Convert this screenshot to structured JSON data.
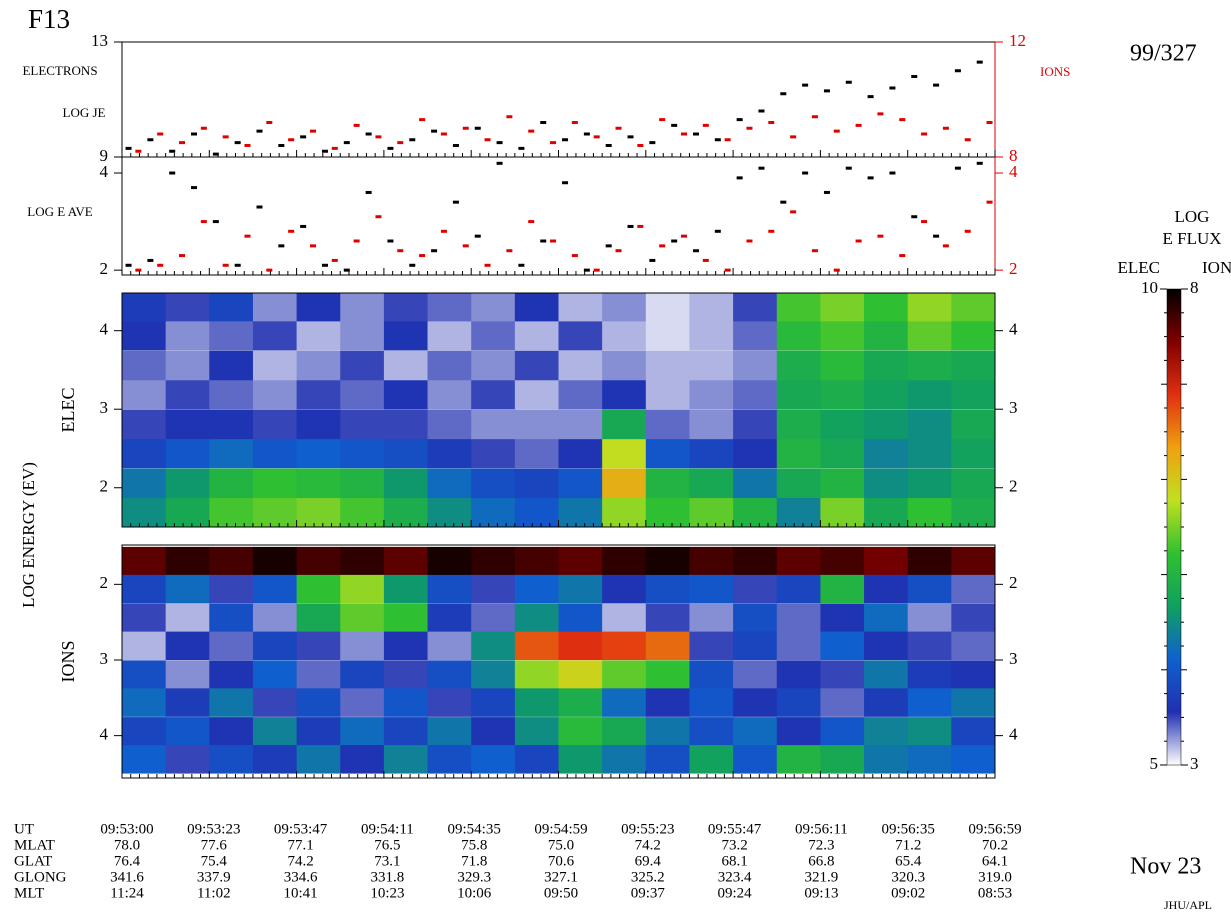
{
  "header": {
    "satellite": "F13",
    "day": "99/327",
    "date": "Nov 23",
    "credit": "JHU/APL",
    "y_axis_label": "LOG ENERGY (EV)"
  },
  "chart_data": [
    {
      "type": "scatter",
      "label_left_1": "ELECTRONS",
      "label_left_2": "LOG JE",
      "label_right": "IONS",
      "ylim": [
        9,
        13
      ],
      "yticks": [
        9,
        13
      ],
      "y2lim": [
        8,
        12
      ],
      "y2ticks": [
        8,
        12
      ],
      "series": [
        {
          "name": "ELECTRONS",
          "color": "#000000",
          "values": [
            9.3,
            9.6,
            9.2,
            9.8,
            9.1,
            9.5,
            9.9,
            9.4,
            9.7,
            9.2,
            9.5,
            9.8,
            9.3,
            9.6,
            9.9,
            9.4,
            10.0,
            9.5,
            9.3,
            10.2,
            9.6,
            9.8,
            9.4,
            9.7,
            9.5,
            10.1,
            9.8,
            9.6,
            10.3,
            10.6,
            11.2,
            11.5,
            11.3,
            11.6,
            11.1,
            11.4,
            11.8,
            11.5,
            12.0,
            12.3
          ]
        },
        {
          "name": "IONS",
          "color": "#e00000",
          "axis": "y2",
          "values": [
            8.2,
            8.8,
            8.5,
            9.0,
            8.7,
            8.4,
            9.2,
            8.6,
            8.9,
            8.3,
            9.1,
            8.7,
            8.5,
            9.3,
            8.8,
            9.0,
            8.6,
            9.4,
            8.9,
            8.5,
            9.2,
            8.7,
            9.0,
            8.4,
            9.3,
            8.8,
            9.1,
            8.6,
            9.0,
            9.2,
            8.7,
            9.4,
            8.9,
            9.1,
            9.5,
            9.3,
            8.8,
            9.0,
            8.6,
            9.2
          ]
        }
      ]
    },
    {
      "type": "scatter",
      "label_left_1": "LOG E AVE",
      "ylim": [
        1.9,
        4.33
      ],
      "yticks": [
        2,
        4
      ],
      "y2lim": [
        1.9,
        4.33
      ],
      "y2ticks": [
        2,
        4
      ],
      "series": [
        {
          "name": "ELECTRONS",
          "color": "#000000",
          "values": [
            2.1,
            2.2,
            4.0,
            3.7,
            3.0,
            2.1,
            3.3,
            2.5,
            2.9,
            2.1,
            2.0,
            3.6,
            2.6,
            2.1,
            2.4,
            3.4,
            2.7,
            4.2,
            2.1,
            2.6,
            3.8,
            2.0,
            2.5,
            2.9,
            2.2,
            2.6,
            2.4,
            2.8,
            3.9,
            4.1,
            3.4,
            4.0,
            3.6,
            4.1,
            3.9,
            4.0,
            3.1,
            2.7,
            4.1,
            4.2
          ]
        },
        {
          "name": "IONS",
          "color": "#e00000",
          "axis": "y2",
          "values": [
            2.0,
            2.1,
            2.3,
            3.0,
            2.1,
            2.7,
            2.0,
            2.8,
            2.5,
            2.2,
            2.6,
            3.1,
            2.4,
            2.3,
            2.8,
            2.5,
            2.1,
            2.4,
            3.0,
            2.6,
            2.3,
            2.0,
            2.4,
            2.9,
            2.5,
            2.7,
            2.2,
            2.0,
            2.6,
            2.8,
            3.2,
            2.4,
            2.0,
            2.6,
            2.7,
            2.3,
            3.0,
            2.5,
            2.8,
            3.4
          ]
        }
      ]
    },
    {
      "type": "heatmap",
      "ylabel": "ELEC",
      "species": "elec",
      "ylim": [
        1.5,
        4.48
      ],
      "yticks": [
        2,
        3,
        4
      ],
      "y": [
        1.69,
        2.06,
        2.44,
        2.81,
        3.19,
        3.56,
        3.94,
        4.31
      ],
      "values": [
        [
          6.5,
          6.8,
          7.3,
          7.4,
          7.5,
          7.3,
          6.9,
          6.5,
          6.2,
          6.0,
          6.3,
          7.6,
          7.2,
          7.4,
          7.0,
          6.4,
          7.5,
          6.8,
          7.2,
          6.9
        ],
        [
          6.3,
          6.6,
          7.0,
          7.2,
          7.1,
          7.0,
          6.6,
          6.2,
          5.9,
          5.8,
          6.0,
          8.2,
          7.0,
          6.8,
          6.3,
          6.8,
          7.0,
          6.5,
          6.6,
          6.8
        ],
        [
          5.8,
          6.0,
          6.2,
          6.0,
          6.1,
          6.0,
          5.9,
          5.7,
          5.5,
          5.4,
          5.6,
          7.8,
          6.0,
          5.8,
          5.6,
          7.0,
          6.8,
          6.4,
          6.5,
          6.7
        ],
        [
          5.5,
          5.6,
          5.6,
          5.5,
          5.6,
          5.5,
          5.5,
          5.4,
          5.3,
          5.3,
          5.3,
          6.8,
          5.4,
          5.3,
          5.5,
          6.9,
          6.7,
          6.6,
          6.5,
          6.8
        ],
        [
          5.3,
          5.5,
          5.4,
          5.3,
          5.5,
          5.4,
          5.6,
          5.3,
          5.5,
          5.2,
          5.4,
          5.6,
          5.2,
          5.3,
          5.4,
          6.8,
          6.9,
          6.7,
          6.6,
          6.7
        ],
        [
          5.4,
          5.3,
          5.6,
          5.2,
          5.3,
          5.5,
          5.2,
          5.4,
          5.3,
          5.5,
          5.2,
          5.3,
          5.2,
          5.2,
          5.3,
          6.9,
          7.1,
          6.8,
          6.9,
          6.8
        ],
        [
          5.6,
          5.3,
          5.4,
          5.5,
          5.2,
          5.3,
          5.6,
          5.2,
          5.4,
          5.2,
          5.5,
          5.2,
          5.1,
          5.2,
          5.4,
          7.1,
          7.3,
          7.0,
          7.4,
          7.2
        ],
        [
          5.7,
          5.5,
          5.8,
          5.3,
          5.6,
          5.3,
          5.5,
          5.4,
          5.3,
          5.6,
          5.2,
          5.3,
          5.1,
          5.2,
          5.5,
          7.3,
          7.5,
          7.2,
          7.6,
          7.4
        ]
      ]
    },
    {
      "type": "heatmap",
      "ylabel": "IONS",
      "species": "ion",
      "inverted": true,
      "ylim": [
        1.48,
        4.56
      ],
      "yticks": [
        2,
        3,
        4
      ],
      "y": [
        1.69,
        2.06,
        2.44,
        2.81,
        3.19,
        3.56,
        3.94,
        4.31
      ],
      "values": [
        [
          7.6,
          7.8,
          7.7,
          7.9,
          7.7,
          7.8,
          7.6,
          7.9,
          7.8,
          7.7,
          7.6,
          7.8,
          7.9,
          7.7,
          7.8,
          7.6,
          7.7,
          7.5,
          7.8,
          7.6
        ],
        [
          3.8,
          4.2,
          3.5,
          4.0,
          5.2,
          5.6,
          4.6,
          3.9,
          3.5,
          4.1,
          4.3,
          3.6,
          3.9,
          4.0,
          3.5,
          3.8,
          5.0,
          3.6,
          3.9,
          3.4
        ],
        [
          3.5,
          3.2,
          3.9,
          3.3,
          4.8,
          5.4,
          5.2,
          3.7,
          3.4,
          4.5,
          4.0,
          3.2,
          3.5,
          3.3,
          3.9,
          3.4,
          3.6,
          4.2,
          3.3,
          3.5
        ],
        [
          3.2,
          3.6,
          3.4,
          3.8,
          3.5,
          3.3,
          3.6,
          3.3,
          4.5,
          6.7,
          6.9,
          6.8,
          6.6,
          3.5,
          3.8,
          3.4,
          4.1,
          3.6,
          3.5,
          3.4
        ],
        [
          3.9,
          3.3,
          3.6,
          4.1,
          3.4,
          3.8,
          3.5,
          3.9,
          4.4,
          5.6,
          5.9,
          5.4,
          5.2,
          3.9,
          3.4,
          3.6,
          3.5,
          4.3,
          3.7,
          3.6
        ],
        [
          4.2,
          3.7,
          4.3,
          3.5,
          3.9,
          3.4,
          4.0,
          3.5,
          3.8,
          4.6,
          4.9,
          4.2,
          3.6,
          4.0,
          3.6,
          3.8,
          3.4,
          3.7,
          4.1,
          4.3
        ],
        [
          3.8,
          4.0,
          3.6,
          4.4,
          3.7,
          4.2,
          3.8,
          4.3,
          3.6,
          4.5,
          5.1,
          4.8,
          4.3,
          3.9,
          4.2,
          3.6,
          4.0,
          4.4,
          4.5,
          3.8
        ],
        [
          4.1,
          3.5,
          3.9,
          3.7,
          4.3,
          3.6,
          4.4,
          3.9,
          4.1,
          3.8,
          4.6,
          4.3,
          3.9,
          4.7,
          4.0,
          5.0,
          4.8,
          4.3,
          4.2,
          4.1
        ]
      ]
    },
    {
      "type": "colorbar",
      "title_1": "LOG",
      "title_2": "E FLUX",
      "elec_label": "ELEC",
      "ion_label": "ION",
      "elec_lim": [
        5,
        10
      ],
      "elec_ticks": [
        5,
        10
      ],
      "ion_lim": [
        3,
        8
      ],
      "ion_ticks": [
        3,
        8
      ],
      "colormap": [
        "#ffffff",
        "#2030b0",
        "#1060d0",
        "#10a060",
        "#30c030",
        "#c0e020",
        "#f0a010",
        "#e03010",
        "#800000",
        "#000000"
      ]
    }
  ],
  "time_table": {
    "row_labels": [
      "UT",
      "MLAT",
      "GLAT",
      "GLONG",
      "MLT"
    ],
    "rows": [
      [
        "09:53:00",
        "09:53:23",
        "09:53:47",
        "09:54:11",
        "09:54:35",
        "09:54:59",
        "09:55:23",
        "09:55:47",
        "09:56:11",
        "09:56:35",
        "09:56:59"
      ],
      [
        "78.0",
        "77.6",
        "77.1",
        "76.5",
        "75.8",
        "75.0",
        "74.2",
        "73.2",
        "72.3",
        "71.2",
        "70.2"
      ],
      [
        "76.4",
        "75.4",
        "74.2",
        "73.1",
        "71.8",
        "70.6",
        "69.4",
        "68.1",
        "66.8",
        "65.4",
        "64.1"
      ],
      [
        "341.6",
        "337.9",
        "334.6",
        "331.8",
        "329.3",
        "327.1",
        "325.2",
        "323.4",
        "321.9",
        "320.3",
        "319.0"
      ],
      [
        "11:24",
        "11:02",
        "10:41",
        "10:23",
        "10:06",
        "09:50",
        "09:37",
        "09:24",
        "09:13",
        "09:02",
        "08:53"
      ]
    ]
  }
}
